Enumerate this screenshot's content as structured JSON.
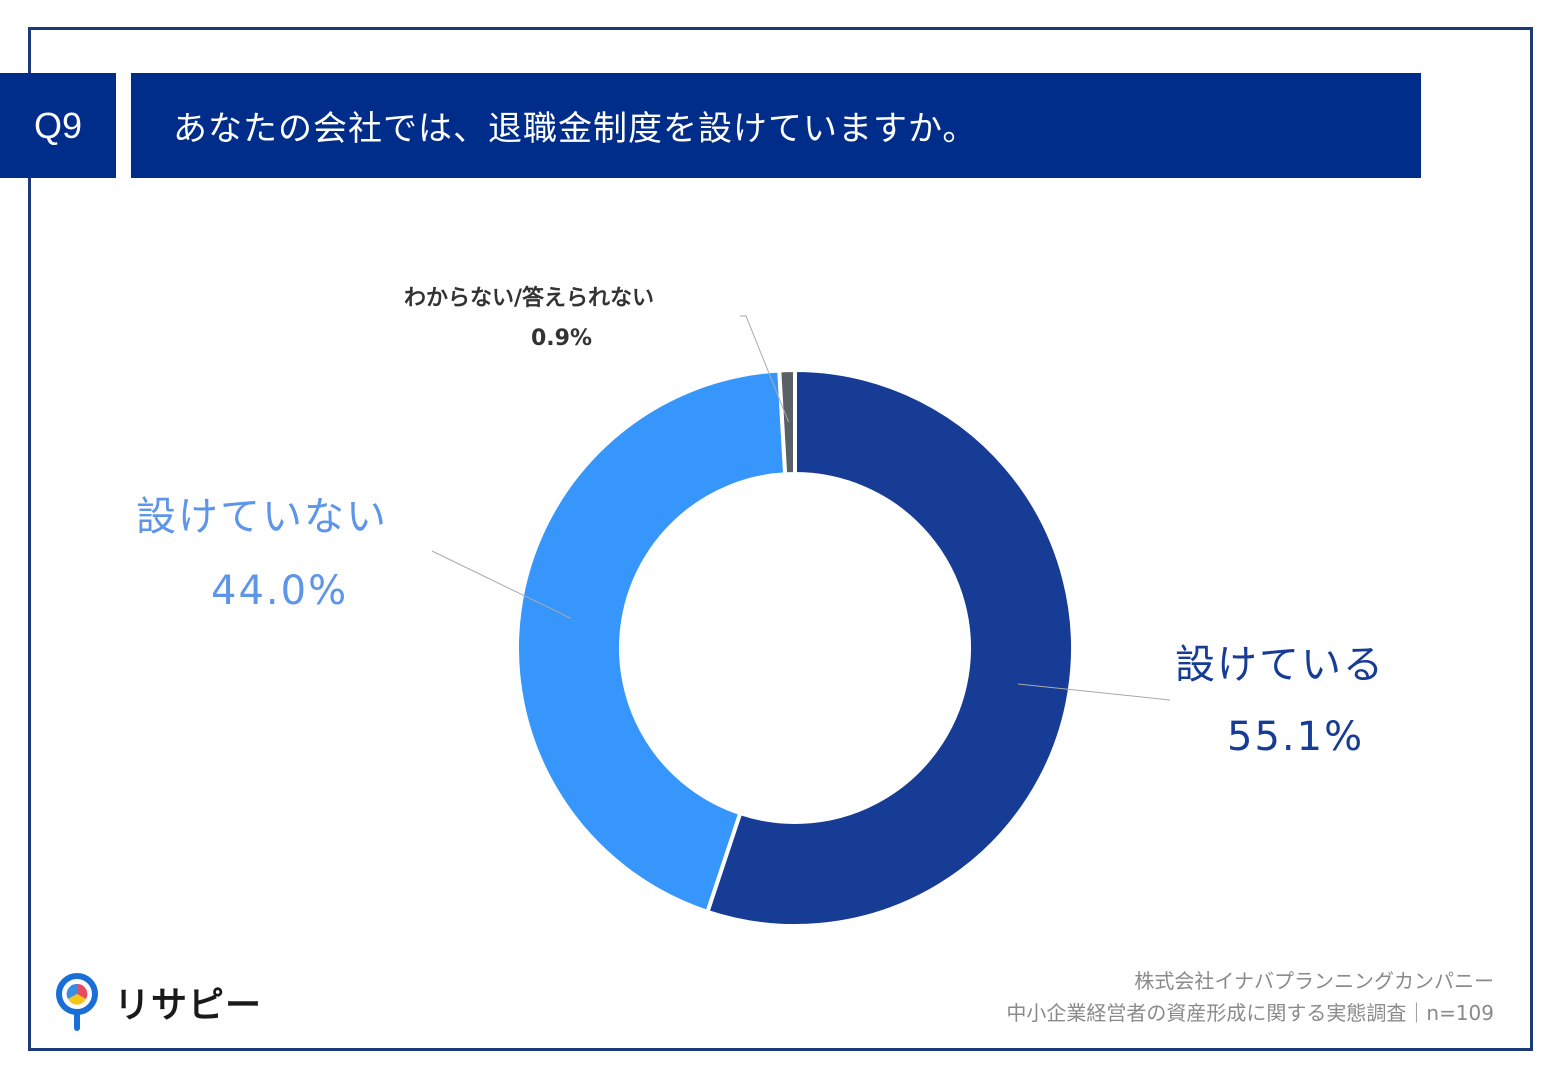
{
  "question": {
    "number": "Q9",
    "text": "あなたの会社では、退職金制度を設けていますか。"
  },
  "chart_data": {
    "type": "pie",
    "donut": true,
    "categories": [
      "設けている",
      "設けていない",
      "わからない/答えられない"
    ],
    "values": [
      55.1,
      44.0,
      0.9
    ],
    "value_labels": [
      "55.1%",
      "44.0%",
      "0.9%"
    ],
    "colors": [
      "#173c95",
      "#3796fb",
      "#5b6066"
    ],
    "label_colors": [
      "#173c95",
      "#5d95e8",
      "#333333"
    ]
  },
  "logo": {
    "text": "リサピー"
  },
  "source": {
    "line1": "株式会社イナバプランニングカンパニー",
    "line2": "中小企業経営者の資産形成に関する実態調査｜n=109"
  }
}
